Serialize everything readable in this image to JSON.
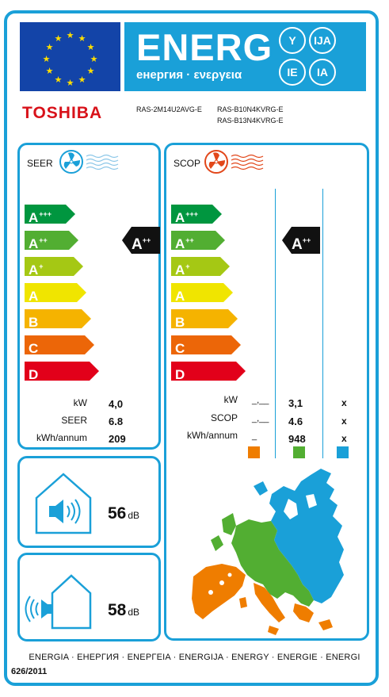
{
  "header": {
    "energy_title": "ENERG",
    "energy_subtitle": "енергия · ενεργεια",
    "lang_pills": [
      "Y",
      "IJA",
      "IE",
      "IA"
    ]
  },
  "supplier": {
    "brand": "TOSHIBA",
    "models": [
      "RAS-2M14U2AVG-E",
      "RAS-B10N4KVRG-E",
      "RAS-B13N4KVRG-E"
    ]
  },
  "colors": {
    "frame_blue": "#1aa0d8",
    "eu_blue": "#1344a8",
    "brand_red": "#d8121a",
    "classes": [
      "#00963f",
      "#52ae32",
      "#a5c814",
      "#f0e500",
      "#f5b300",
      "#ec6608",
      "#e2001a"
    ],
    "zone_warm": "#ef7d00",
    "zone_average": "#52ae32",
    "zone_cold": "#1aa0d8"
  },
  "classes": [
    {
      "letter": "A",
      "sup": "+++"
    },
    {
      "letter": "A",
      "sup": "++"
    },
    {
      "letter": "A",
      "sup": "+"
    },
    {
      "letter": "A",
      "sup": ""
    },
    {
      "letter": "B",
      "sup": ""
    },
    {
      "letter": "C",
      "sup": ""
    },
    {
      "letter": "D",
      "sup": ""
    }
  ],
  "seer": {
    "label": "SEER",
    "icon": "fan-cooling-icon",
    "rating_letter": "A",
    "rating_sup": "++",
    "rows": [
      {
        "label": "kW",
        "value": "4,0"
      },
      {
        "label": "SEER",
        "value": "6.8"
      },
      {
        "label": "kWh/annum",
        "value": "209"
      }
    ]
  },
  "scop": {
    "label": "SCOP",
    "icon": "fan-heating-icon",
    "rating_letter": "A",
    "rating_sup": "++",
    "rows": [
      {
        "label": "kW",
        "dash": "_,__",
        "value": "3,1",
        "x": "x"
      },
      {
        "label": "SCOP",
        "dash": "_,__",
        "value": "4.6",
        "x": "x"
      },
      {
        "label": "kWh/annum",
        "dash": "_",
        "value": "948",
        "x": "x"
      }
    ]
  },
  "noise": {
    "indoor_value": "56",
    "outdoor_value": "58",
    "unit": "dB"
  },
  "footer": {
    "languages": "ENERGIA · ЕНЕРГИЯ · ΕΝΕΡΓΕΙΑ · ENERGIJA · ENERGY · ENERGIE · ENERGI",
    "regulation": "626/2011"
  }
}
